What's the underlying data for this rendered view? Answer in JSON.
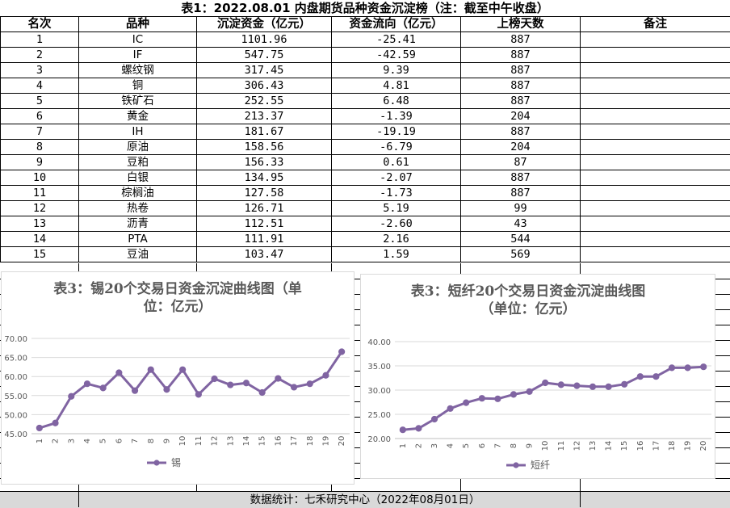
{
  "table": {
    "title": "表1：2022.08.01 内盘期货品种资金沉淀榜（注：截至中午收盘）",
    "headers": [
      "名次",
      "品种",
      "沉淀资金（亿元）",
      "资金流向（亿元）",
      "上榜天数",
      "备注"
    ],
    "rows": [
      [
        "1",
        "IC",
        "1101.96",
        "-25.41",
        "887",
        ""
      ],
      [
        "2",
        "IF",
        "547.75",
        "-42.59",
        "887",
        ""
      ],
      [
        "3",
        "螺纹钢",
        "317.45",
        "9.39",
        "887",
        ""
      ],
      [
        "4",
        "铜",
        "306.43",
        "4.81",
        "887",
        ""
      ],
      [
        "5",
        "铁矿石",
        "252.55",
        "6.48",
        "887",
        ""
      ],
      [
        "6",
        "黄金",
        "213.37",
        "-1.39",
        "204",
        ""
      ],
      [
        "7",
        "IH",
        "181.67",
        "-19.19",
        "887",
        ""
      ],
      [
        "8",
        "原油",
        "158.56",
        "-6.79",
        "204",
        ""
      ],
      [
        "9",
        "豆粕",
        "156.33",
        "0.61",
        "87",
        ""
      ],
      [
        "10",
        "白银",
        "134.95",
        "-2.07",
        "887",
        ""
      ],
      [
        "11",
        "棕榈油",
        "127.58",
        "-1.73",
        "887",
        ""
      ],
      [
        "12",
        "热卷",
        "126.71",
        "5.19",
        "99",
        ""
      ],
      [
        "13",
        "沥青",
        "112.51",
        "-2.60",
        "43",
        ""
      ],
      [
        "14",
        "PTA",
        "111.91",
        "2.16",
        "544",
        ""
      ],
      [
        "15",
        "豆油",
        "103.47",
        "1.59",
        "569",
        ""
      ]
    ]
  },
  "footer": {
    "text": "数据统计：七禾研究中心（2022年08月01日）"
  },
  "colors": {
    "line": "#8064a2",
    "grid": "#d9d9d9",
    "text": "#595959",
    "footer_bg": "#d9d9d9"
  },
  "chart_data": [
    {
      "type": "line",
      "title_lines": [
        "表3：锡20个交易日资金沉淀曲线图（单",
        "位：亿元）"
      ],
      "x": [
        1,
        2,
        3,
        4,
        5,
        6,
        7,
        8,
        9,
        10,
        11,
        12,
        13,
        14,
        15,
        16,
        17,
        18,
        19,
        20
      ],
      "series": [
        {
          "name": "锡",
          "values": [
            46.5,
            47.8,
            54.8,
            58.1,
            57.0,
            61.0,
            56.3,
            61.8,
            56.6,
            61.8,
            55.3,
            59.4,
            57.8,
            58.3,
            55.8,
            59.5,
            57.2,
            58.1,
            60.3,
            66.5
          ]
        }
      ],
      "ylim": [
        45,
        70
      ],
      "yticks": [
        "45.00",
        "50.00",
        "55.00",
        "60.00",
        "65.00",
        "70.00"
      ],
      "grid": true,
      "legend": "bottom"
    },
    {
      "type": "line",
      "title_lines": [
        "表3：短纤20个交易日资金沉淀曲线图",
        "（单位：亿元）"
      ],
      "x": [
        1,
        2,
        3,
        4,
        5,
        6,
        7,
        8,
        9,
        10,
        11,
        12,
        13,
        14,
        15,
        16,
        17,
        18,
        19,
        20
      ],
      "series": [
        {
          "name": "短纤",
          "values": [
            21.8,
            22.1,
            24.0,
            26.2,
            27.4,
            28.3,
            28.2,
            29.1,
            29.7,
            31.5,
            31.1,
            30.9,
            30.7,
            30.7,
            31.2,
            32.8,
            32.8,
            34.6,
            34.6,
            34.8
          ]
        }
      ],
      "ylim": [
        20,
        40
      ],
      "yticks": [
        "20.00",
        "25.00",
        "30.00",
        "35.00",
        "40.00"
      ],
      "grid": true,
      "legend": "bottom"
    }
  ]
}
